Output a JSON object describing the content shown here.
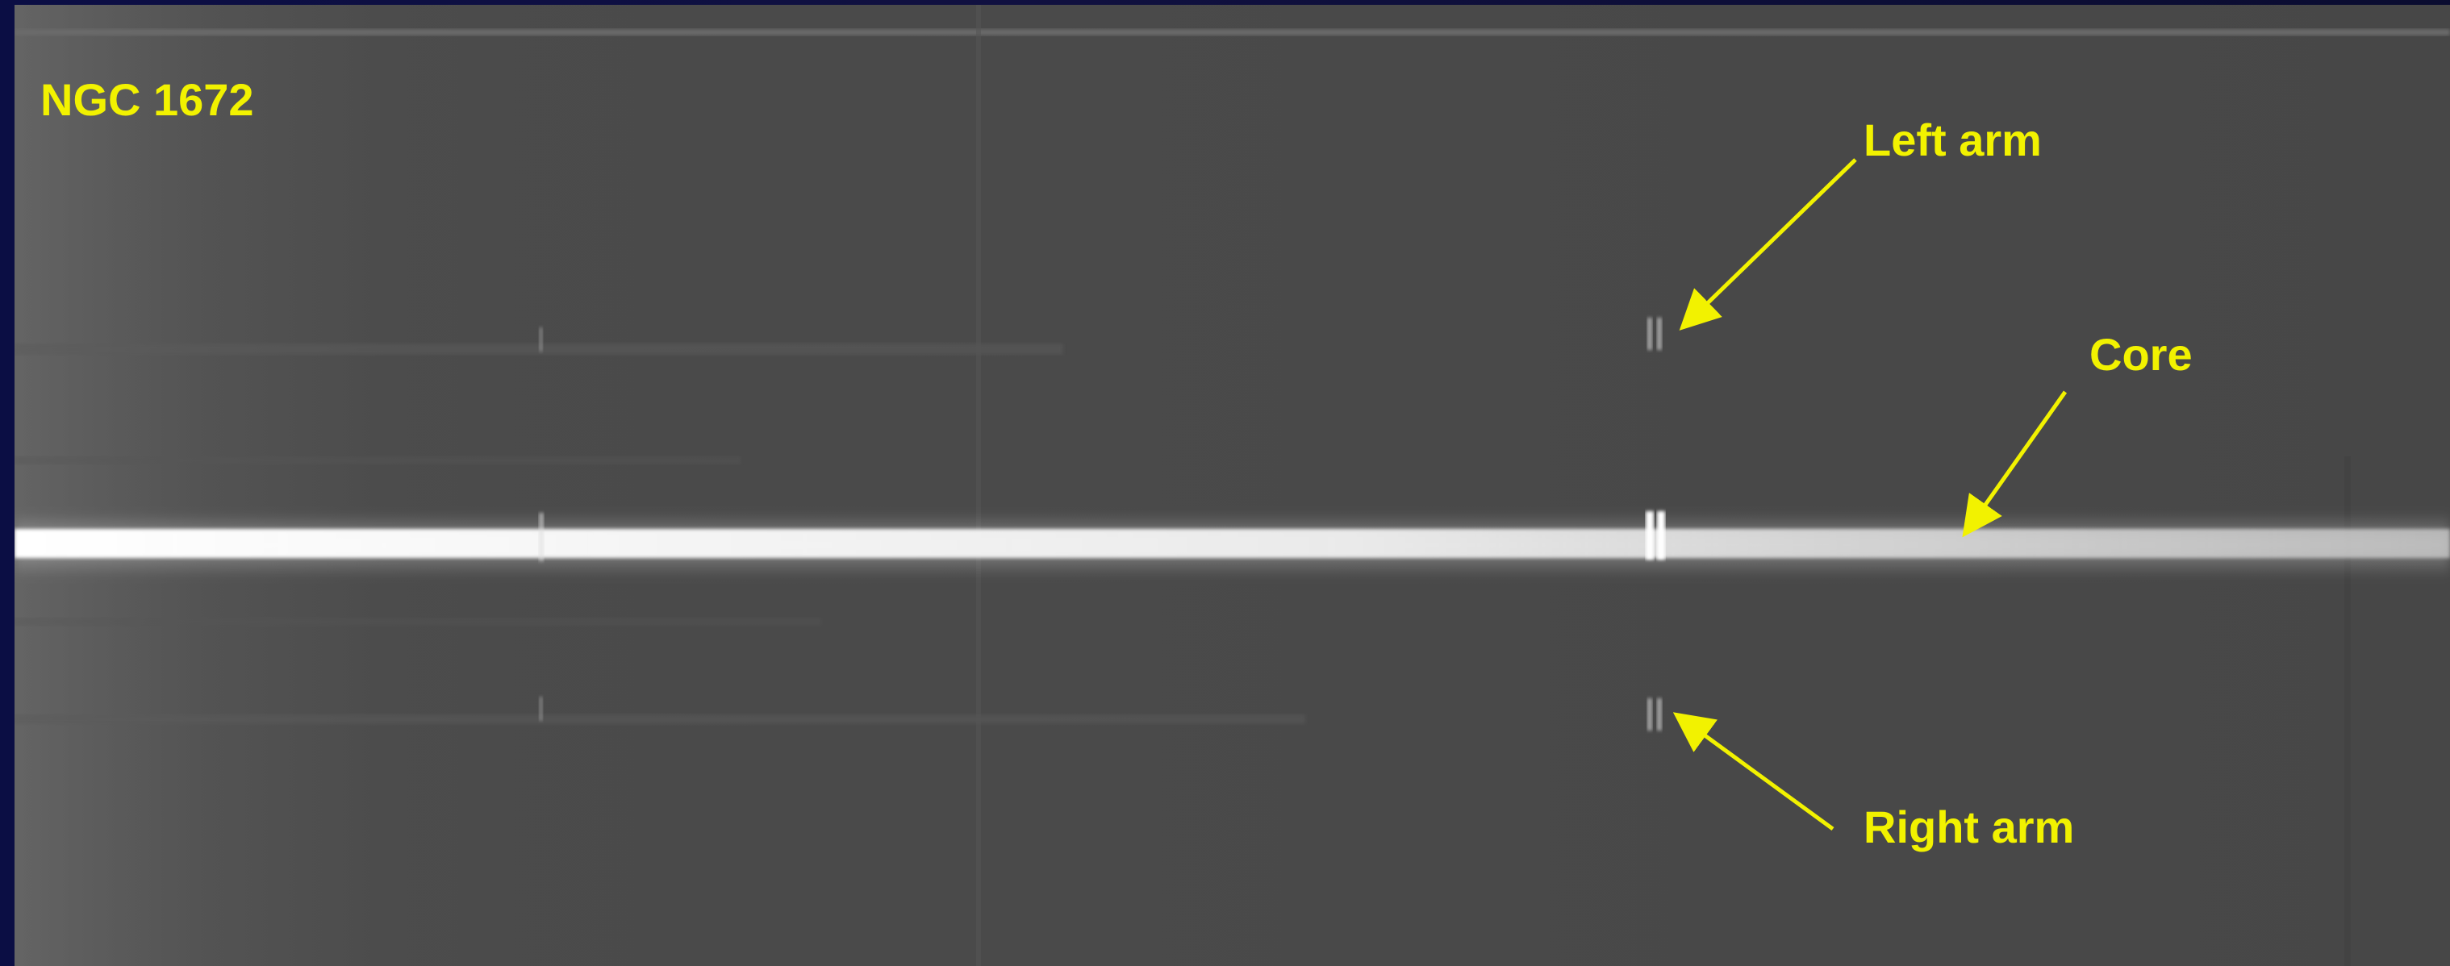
{
  "image": {
    "title": "NGC 1672",
    "annotations": [
      {
        "id": "left-arm",
        "text": "Left arm"
      },
      {
        "id": "core",
        "text": "Core"
      },
      {
        "id": "right-arm",
        "text": "Right arm"
      }
    ],
    "colors": {
      "annotation": "#f2f200",
      "frame": "#0c0f3a",
      "sky": "#4a4a4a",
      "core_trace": "#f4f4f4"
    }
  }
}
